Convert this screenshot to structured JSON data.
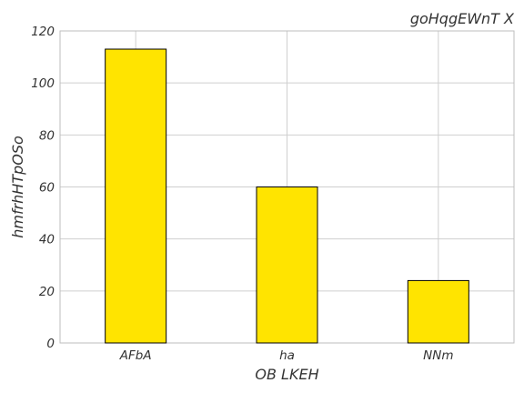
{
  "chart_data": {
    "type": "bar",
    "title": "goHqgEWnT X",
    "xlabel": "OB LKEH",
    "ylabel": "hmfrhHTpOSo",
    "categories": [
      "AFbA",
      "ha",
      "NNm"
    ],
    "values": [
      113,
      60,
      24
    ],
    "ylim": [
      0,
      120
    ],
    "yticks": [
      0,
      20,
      40,
      60,
      80,
      100,
      120
    ],
    "grid": true,
    "bar_color": "#ffe400"
  }
}
